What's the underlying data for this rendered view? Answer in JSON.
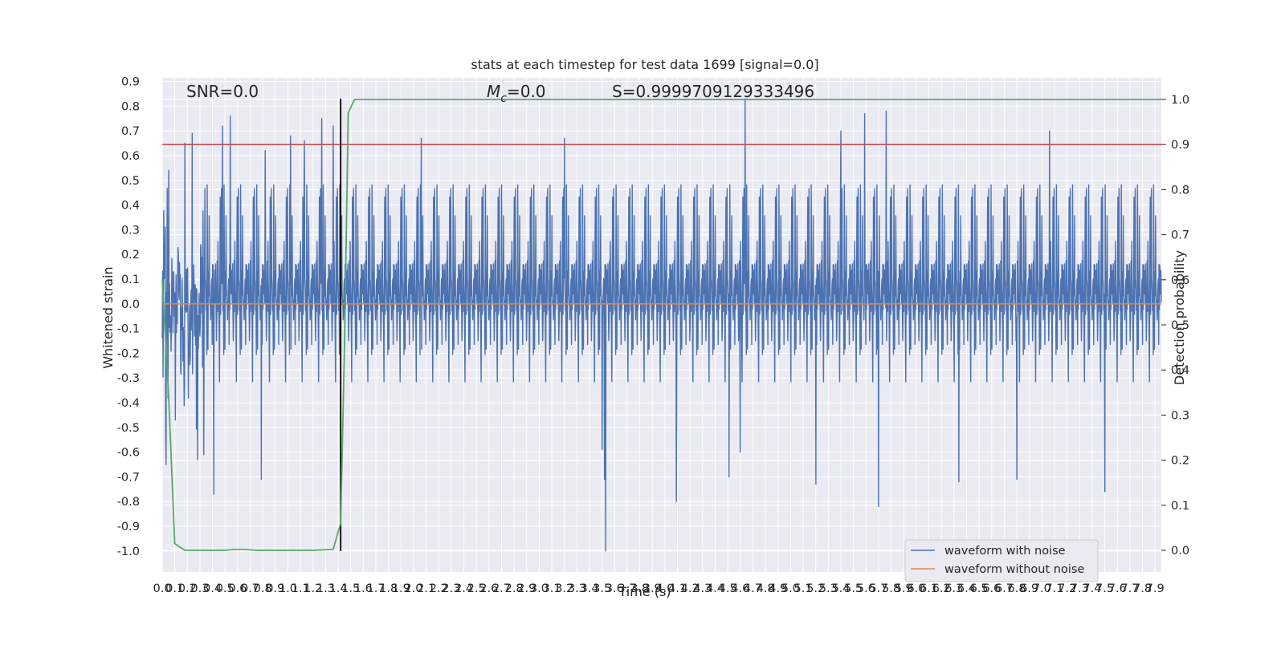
{
  "chart_data": {
    "type": "line",
    "title": "stats at each timestep for test data 1699 [signal=0.0]",
    "xlabel": "Time (s)",
    "ylabel": "Whitened strain",
    "y2label": "Detection probability",
    "xlim": [
      0.0,
      7.95
    ],
    "ylim": [
      -1.085,
      0.915
    ],
    "y2lim": [
      -0.048,
      1.048
    ],
    "grid": true,
    "legend_position": "lower-right",
    "x_ticks": [
      "0.0",
      "0.1",
      "0.2",
      "0.3",
      "0.4",
      "0.5",
      "0.6",
      "0.7",
      "0.8",
      "0.9",
      "1.0",
      "1.1",
      "1.2",
      "1.3",
      "1.4",
      "1.5",
      "1.6",
      "1.7",
      "1.8",
      "1.9",
      "2.0",
      "2.1",
      "2.2",
      "2.3",
      "2.4",
      "2.5",
      "2.6",
      "2.7",
      "2.8",
      "2.9",
      "3.0",
      "3.1",
      "3.2",
      "3.3",
      "3.4",
      "3.5",
      "3.6",
      "3.7",
      "3.8",
      "3.9",
      "4.0",
      "4.1",
      "4.2",
      "4.3",
      "4.4",
      "4.5",
      "4.6",
      "4.7",
      "4.8",
      "4.9",
      "5.0",
      "5.1",
      "5.2",
      "5.3",
      "5.4",
      "5.5",
      "5.6",
      "5.7",
      "5.8",
      "5.9",
      "6.0",
      "6.1",
      "6.2",
      "6.3",
      "6.4",
      "6.5",
      "6.6",
      "6.7",
      "6.8",
      "6.9",
      "7.0",
      "7.1",
      "7.2",
      "7.3",
      "7.4",
      "7.5",
      "7.6",
      "7.7",
      "7.8",
      "7.9"
    ],
    "y_ticks": [
      "0.9",
      "0.8",
      "0.7",
      "0.6",
      "0.5",
      "0.4",
      "0.3",
      "0.2",
      "0.1",
      "0.0",
      "-0.1",
      "-0.2",
      "-0.3",
      "-0.4",
      "-0.5",
      "-0.6",
      "-0.7",
      "-0.8",
      "-0.9",
      "-1.0"
    ],
    "y2_ticks": [
      "1.0",
      "0.9",
      "0.8",
      "0.7",
      "0.6",
      "0.5",
      "0.4",
      "0.3",
      "0.2",
      "0.1",
      "0.0"
    ],
    "series": [
      {
        "name": "waveform with noise",
        "color": "#4c72b0",
        "axis": "left",
        "note_hint": "dense noise between approx -0.5 and 0.5 with spikes",
        "envelope_typical": 0.28,
        "spikes": [
          {
            "x": 0.03,
            "y": -0.65
          },
          {
            "x": 0.18,
            "y": 0.65
          },
          {
            "x": 0.24,
            "y": 0.69
          },
          {
            "x": 0.28,
            "y": -0.63
          },
          {
            "x": 0.33,
            "y": -0.61
          },
          {
            "x": 0.41,
            "y": -0.77
          },
          {
            "x": 0.48,
            "y": 0.72
          },
          {
            "x": 0.54,
            "y": 0.76
          },
          {
            "x": 0.79,
            "y": -0.71
          },
          {
            "x": 0.82,
            "y": 0.62
          },
          {
            "x": 1.02,
            "y": 0.68
          },
          {
            "x": 1.13,
            "y": 0.66
          },
          {
            "x": 1.27,
            "y": 0.75
          },
          {
            "x": 1.36,
            "y": 0.72
          },
          {
            "x": 2.06,
            "y": 0.67
          },
          {
            "x": 3.2,
            "y": 0.67
          },
          {
            "x": 3.5,
            "y": -0.59
          },
          {
            "x": 3.52,
            "y": -0.71
          },
          {
            "x": 3.53,
            "y": -1.0
          },
          {
            "x": 4.09,
            "y": -0.8
          },
          {
            "x": 4.51,
            "y": -0.7
          },
          {
            "x": 4.6,
            "y": -0.6
          },
          {
            "x": 4.64,
            "y": 0.83
          },
          {
            "x": 5.2,
            "y": -0.73
          },
          {
            "x": 5.4,
            "y": 0.7
          },
          {
            "x": 5.59,
            "y": 0.77
          },
          {
            "x": 5.76,
            "y": 0.78
          },
          {
            "x": 5.7,
            "y": -0.82
          },
          {
            "x": 6.34,
            "y": -0.72
          },
          {
            "x": 6.8,
            "y": -0.71
          },
          {
            "x": 7.06,
            "y": 0.7
          },
          {
            "x": 7.5,
            "y": -0.76
          }
        ]
      },
      {
        "name": "waveform without noise",
        "color": "#dd8452",
        "axis": "left",
        "x": [
          0.0,
          7.95
        ],
        "y": [
          0.0,
          0.0
        ]
      },
      {
        "name": "Detection probability",
        "color": "#55a868",
        "axis": "right",
        "x": [
          0.0,
          0.05,
          0.1,
          0.18,
          0.3,
          0.4,
          0.5,
          0.58,
          0.65,
          0.75,
          0.9,
          1.0,
          1.2,
          1.36,
          1.42,
          1.45,
          1.48,
          1.53,
          1.6,
          2.0,
          3.0,
          4.0,
          5.0,
          6.0,
          7.0,
          7.95
        ],
        "y": [
          0.6,
          0.35,
          0.015,
          0.0,
          0.0,
          0.0,
          0.0,
          0.002,
          0.002,
          0.0,
          0.0,
          0.0,
          0.0,
          0.002,
          0.06,
          0.45,
          0.97,
          1.0,
          1.0,
          1.0,
          1.0,
          1.0,
          1.0,
          1.0,
          1.0,
          1.0
        ]
      }
    ],
    "threshold_line": {
      "y2": 0.9,
      "color": "#c44e52"
    },
    "vertical_line": {
      "x": 1.42,
      "y_from": -1.0,
      "y_to": 0.83,
      "color": "#000000"
    },
    "annotations": {
      "snr": "SNR=0.0",
      "mc_symbol": "M",
      "mc_sub": "c",
      "mc_value": "=0.0",
      "s": "S=0.9999709129333496"
    }
  }
}
